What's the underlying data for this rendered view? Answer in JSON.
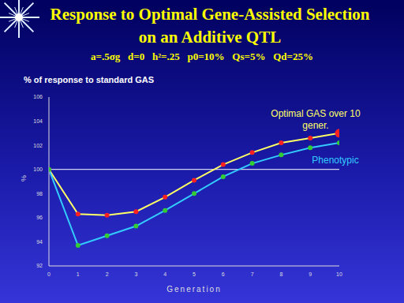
{
  "chart_data": {
    "type": "line",
    "title": "Response to Optimal Gene-Assisted Selection on an Additive QTL",
    "subtitle": "a=.5σg   d=0   h²=.25   p0=10%   Qs=5%   Qd=25%",
    "y_title": "% of response to standard GAS",
    "y_label": "%",
    "x_label": "Generation",
    "x": [
      0,
      1,
      2,
      3,
      4,
      5,
      6,
      7,
      8,
      9,
      10
    ],
    "xlim": [
      0,
      10
    ],
    "xticks": [
      0,
      1,
      2,
      3,
      4,
      5,
      6,
      7,
      8,
      9,
      10
    ],
    "ylim": [
      92,
      106
    ],
    "yticks": [
      92,
      94,
      96,
      98,
      100,
      102,
      104,
      106
    ],
    "grid": false,
    "reference_line": 100,
    "series": [
      {
        "name": "Optimal GAS over 10 gener.",
        "color": "#ffff66",
        "marker": "circle",
        "values": [
          100,
          96.3,
          96.2,
          96.5,
          97.7,
          99.1,
          100.4,
          101.4,
          102.2,
          102.6,
          103.0
        ]
      },
      {
        "name": "Phenotypic",
        "color": "#33ccff",
        "marker": "circle",
        "values": [
          100,
          93.7,
          94.5,
          95.3,
          96.6,
          98.0,
          99.4,
          100.5,
          101.2,
          101.8,
          102.2
        ]
      }
    ]
  }
}
